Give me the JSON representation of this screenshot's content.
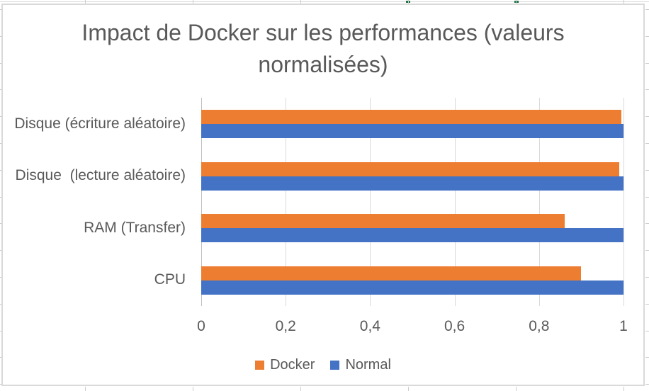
{
  "chart_data": {
    "type": "bar",
    "orientation": "horizontal",
    "title": "Impact de Docker sur les performances (valeurs normalisées)",
    "categories": [
      "Disque (écriture aléatoire)",
      "Disque  (lecture aléatoire)",
      "RAM (Transfer)",
      "CPU"
    ],
    "series": [
      {
        "name": "Docker",
        "color": "#ED7D31",
        "values": [
          0.995,
          0.99,
          0.86,
          0.9
        ]
      },
      {
        "name": "Normal",
        "color": "#4472C4",
        "values": [
          1.0,
          1.0,
          1.0,
          1.0
        ]
      }
    ],
    "xlim": [
      0,
      1
    ],
    "x_tick_labels": [
      "0",
      "0,2",
      "0,4",
      "0,6",
      "0,8",
      "1"
    ],
    "x_tick_values": [
      0,
      0.2,
      0.4,
      0.6,
      0.8,
      1
    ],
    "grid": true,
    "legend_position": "bottom",
    "colors": {
      "title_text": "#595959",
      "axis_text": "#595959",
      "gridline": "#D9D9D9",
      "chart_border": "#D9D9D9",
      "sheet_header_accent": "#217346"
    }
  }
}
